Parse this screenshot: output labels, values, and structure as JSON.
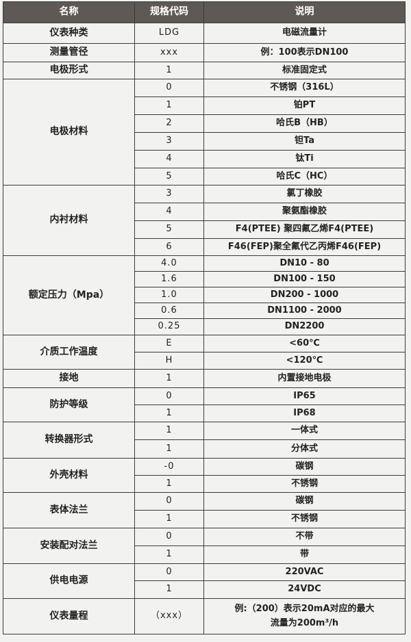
{
  "header": {
    "name": "名称",
    "code": "规格代码",
    "desc": "说明"
  },
  "groups": [
    {
      "name": "仪表种类",
      "rows": [
        {
          "code": "LDG",
          "desc": "电磁流量计"
        }
      ]
    },
    {
      "name": "测量管径",
      "rows": [
        {
          "code": "xxx",
          "desc": "例：100表示DN100"
        }
      ]
    },
    {
      "name": "电极形式",
      "rows": [
        {
          "code": "1",
          "desc": "标准固定式"
        }
      ]
    },
    {
      "name": "电极材料",
      "rows": [
        {
          "code": "0",
          "desc": "不锈钢（316L）"
        },
        {
          "code": "1",
          "desc": "铂PT"
        },
        {
          "code": "2",
          "desc": "哈氏B（HB）"
        },
        {
          "code": "3",
          "desc": "钽Ta"
        },
        {
          "code": "4",
          "desc": "钛Ti"
        },
        {
          "code": "5",
          "desc": "哈氏C（HC）"
        }
      ]
    },
    {
      "name": "内衬材料",
      "rows": [
        {
          "code": "3",
          "desc": "氯丁橡胶"
        },
        {
          "code": "4",
          "desc": "聚氨酯橡胶"
        },
        {
          "code": "5",
          "desc": "F4(PTEE) 聚四氟乙烯F4(PTEE)"
        },
        {
          "code": "6",
          "desc": "F46(FEP)聚全氟代乙丙烯F46(FEP)"
        }
      ]
    },
    {
      "name": "额定压力（Mpa）",
      "rows": [
        {
          "code": "4.0",
          "desc": "DN10 - 80"
        },
        {
          "code": "1.6",
          "desc": "DN100 - 150"
        },
        {
          "code": "1.0",
          "desc": "DN200 - 1000"
        },
        {
          "code": "0.6",
          "desc": "DN1100 - 2000"
        },
        {
          "code": "0.25",
          "desc": "DN2200"
        }
      ]
    },
    {
      "name": "介质工作温度",
      "rows": [
        {
          "code": "E",
          "desc": "<60℃"
        },
        {
          "code": "H",
          "desc": "<120℃"
        }
      ]
    },
    {
      "name": "接地",
      "rows": [
        {
          "code": "1",
          "desc": "内置接地电极"
        }
      ]
    },
    {
      "name": "防护等级",
      "rows": [
        {
          "code": "0",
          "desc": "IP65"
        },
        {
          "code": "1",
          "desc": "IP68"
        }
      ]
    },
    {
      "name": "转换器形式",
      "rows": [
        {
          "code": "1",
          "desc": "一体式"
        },
        {
          "code": "1",
          "desc": "分体式"
        }
      ]
    },
    {
      "name": "外壳材料",
      "rows": [
        {
          "code": "-0",
          "desc": "碳钢"
        },
        {
          "code": "1",
          "desc": "不锈钢"
        }
      ]
    },
    {
      "name": "表体法兰",
      "rows": [
        {
          "code": "0",
          "desc": "碳钢"
        },
        {
          "code": "1",
          "desc": "不锈钢"
        }
      ]
    },
    {
      "name": "安装配对法兰",
      "rows": [
        {
          "code": "0",
          "desc": "不带"
        },
        {
          "code": "1",
          "desc": "带"
        }
      ]
    },
    {
      "name": "供电电源",
      "rows": [
        {
          "code": "0",
          "desc": "220VAC"
        },
        {
          "code": "1",
          "desc": "24VDC"
        }
      ]
    },
    {
      "name": "仪表量程",
      "rows": [
        {
          "code": "（xxx）",
          "desc": "例:（200）表示20mA对应的最大",
          "desc2": "流量为200m³/h"
        }
      ]
    }
  ]
}
